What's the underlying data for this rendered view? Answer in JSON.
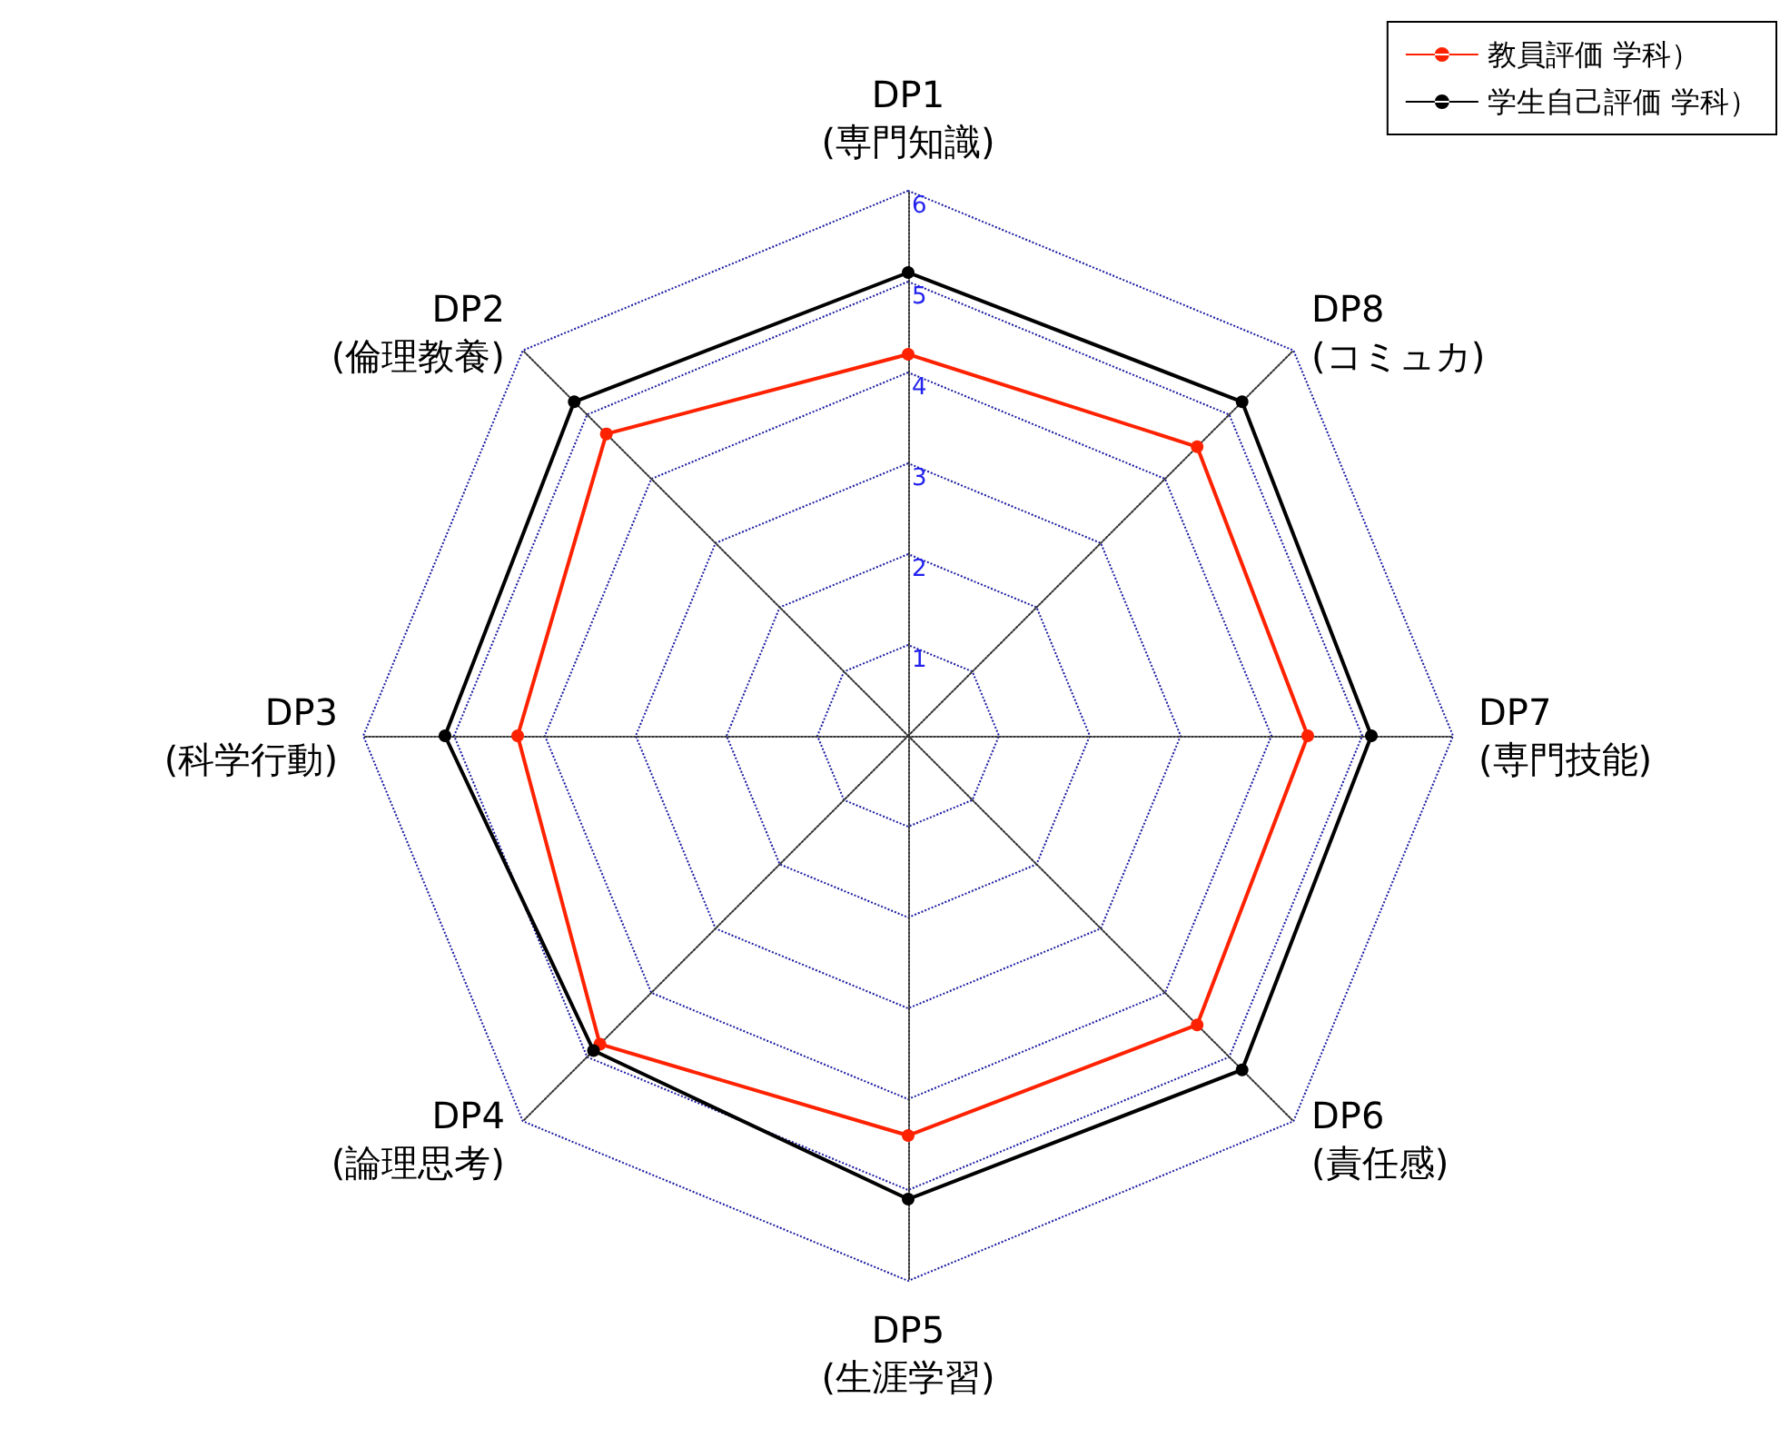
{
  "chart_data": {
    "type": "radar",
    "categories": [
      "DP1\n(専門知識)",
      "DP8\n(コミュカ)",
      "DP7\n(専門技能)",
      "DP6\n(責任感)",
      "DP5\n(生涯学習)",
      "DP4\n(論理思考)",
      "DP3\n(科学行動)",
      "DP2\n(倫理教養)"
    ],
    "series": [
      {
        "name": "教員評価 学科）",
        "color": "#ff2200",
        "values": [
          4.2,
          4.5,
          4.4,
          4.5,
          4.4,
          4.8,
          4.3,
          4.7
        ]
      },
      {
        "name": "学生自己評価 学科）",
        "color": "#000000",
        "values": [
          5.1,
          5.2,
          5.1,
          5.2,
          5.1,
          4.9,
          5.1,
          5.2
        ]
      }
    ],
    "ylim": [
      0,
      6
    ],
    "yticks": [
      1,
      2,
      3,
      4,
      5,
      6
    ],
    "grid": true,
    "legend": "top right",
    "marker": "circle",
    "line_style": "solid"
  }
}
